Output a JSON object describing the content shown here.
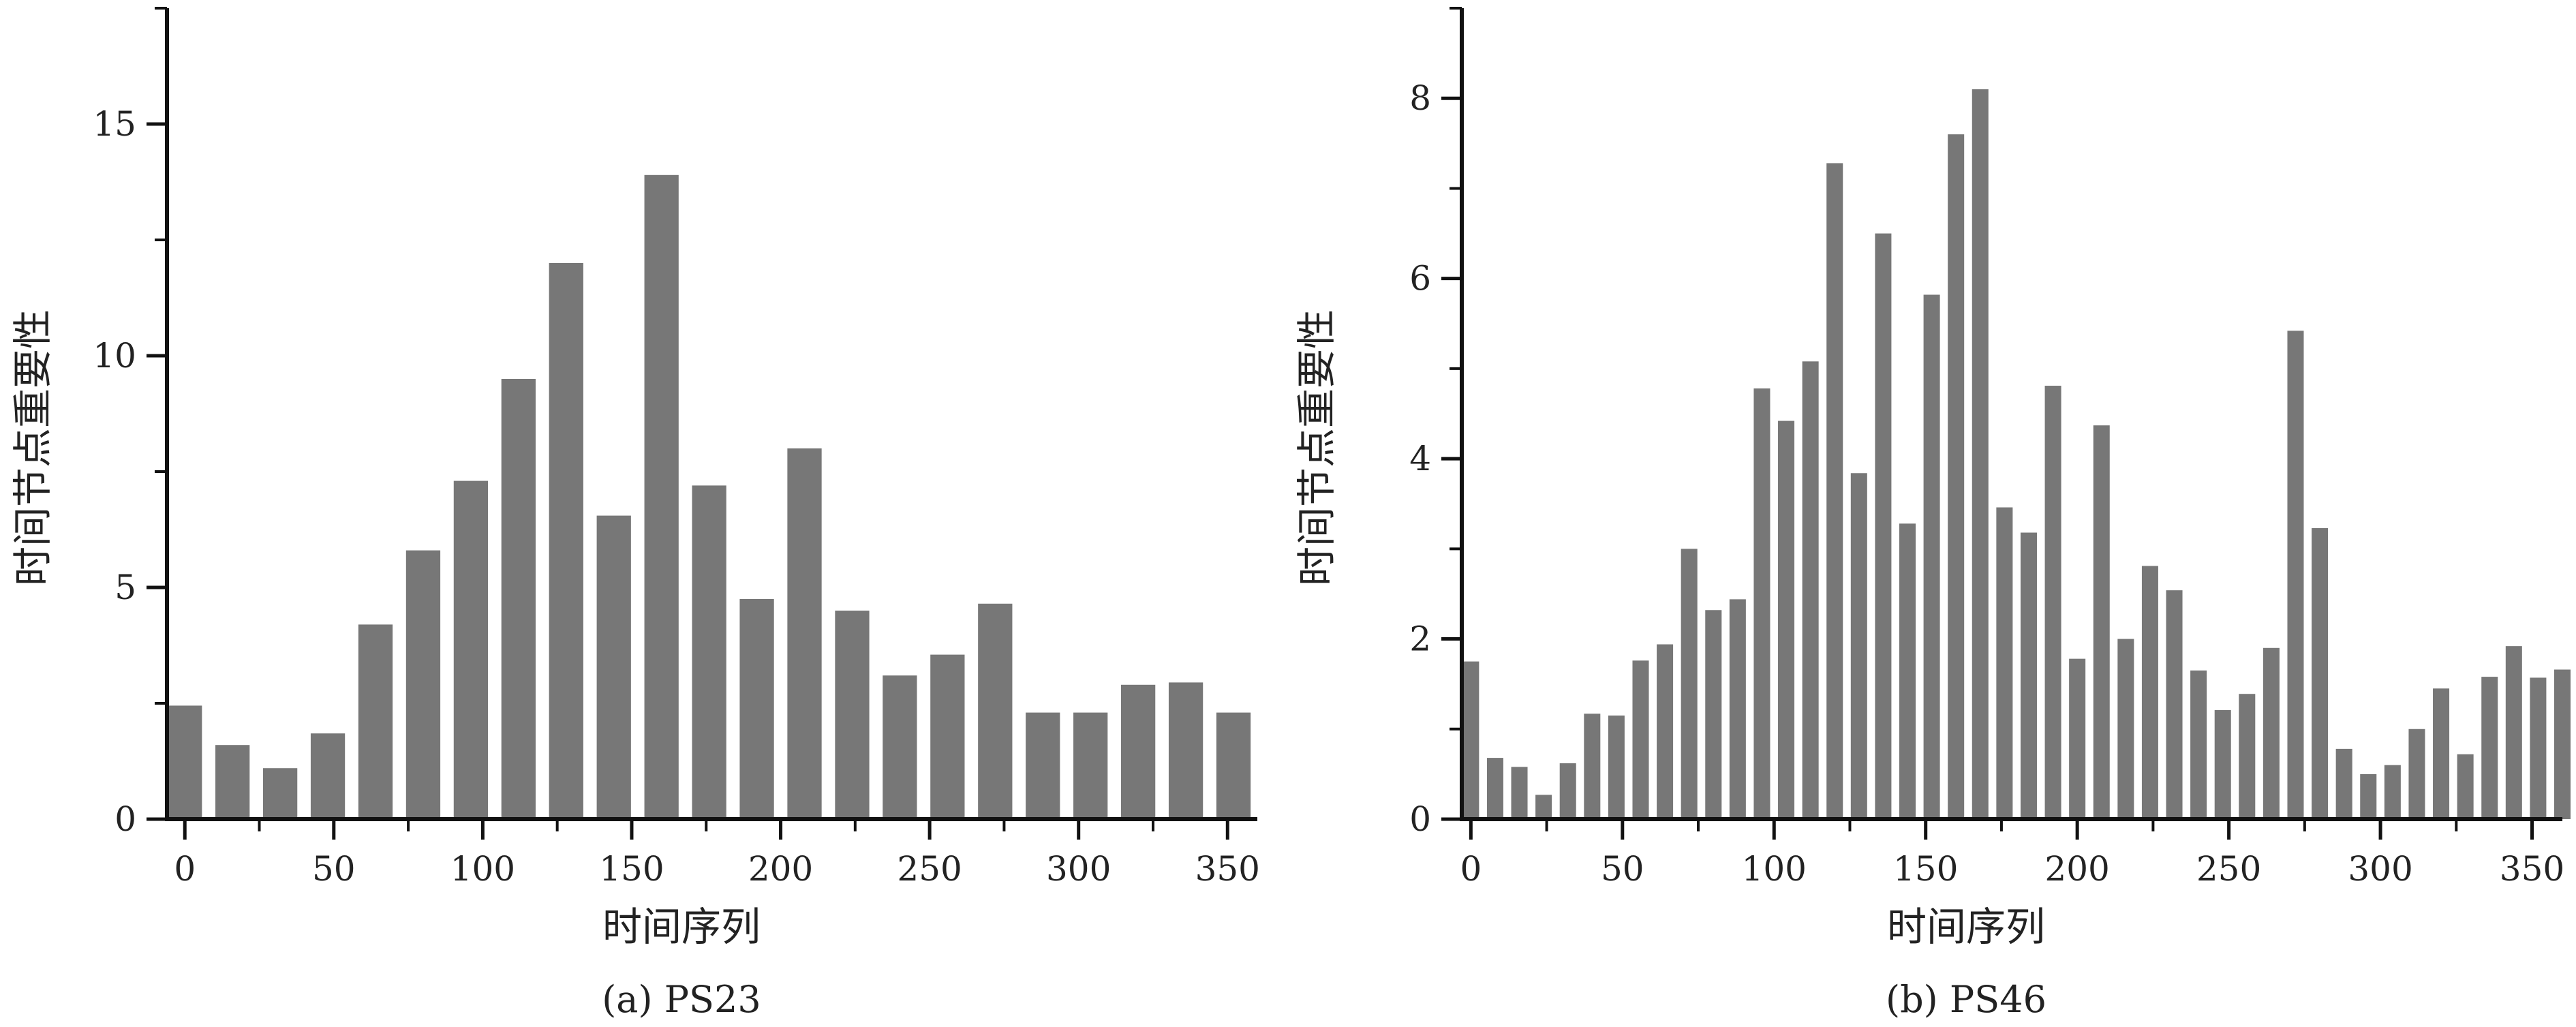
{
  "figure": {
    "background": "#ffffff",
    "bar_color": "#777777",
    "axis_color": "#111111"
  },
  "chart_data": [
    {
      "type": "bar",
      "caption": "(a) PS23",
      "xlabel": "时间序列",
      "ylabel": "时间节点重要性",
      "xlim": [
        -6,
        360
      ],
      "ylim": [
        0,
        17.5
      ],
      "xticks": [
        0,
        50,
        100,
        150,
        200,
        250,
        300,
        350
      ],
      "xtick_labels": [
        "0",
        "50",
        "100",
        "150",
        "200",
        "250",
        "300",
        "350"
      ],
      "yticks": [
        0,
        5,
        10,
        15
      ],
      "ytick_labels": [
        "0",
        "5",
        "10",
        "15"
      ],
      "bar_width": 11.5,
      "grid": false,
      "x": [
        0,
        16,
        32,
        48,
        64,
        80,
        96,
        112,
        128,
        144,
        160,
        176,
        192,
        208,
        224,
        240,
        256,
        272,
        288,
        304,
        320,
        336,
        352
      ],
      "values": [
        2.45,
        1.6,
        1.1,
        1.85,
        4.2,
        5.8,
        7.3,
        9.5,
        12.0,
        6.55,
        13.9,
        7.2,
        4.75,
        8.0,
        4.5,
        3.1,
        3.55,
        4.65,
        2.3,
        2.3,
        2.9,
        2.95,
        2.3
      ]
    },
    {
      "type": "bar",
      "caption": "(b) PS46",
      "xlabel": "时间序列",
      "ylabel": "时间节点重要性",
      "xlim": [
        -3,
        360
      ],
      "ylim": [
        0,
        9
      ],
      "xticks": [
        0,
        50,
        100,
        150,
        200,
        250,
        300,
        350
      ],
      "xtick_labels": [
        "0",
        "50",
        "100",
        "150",
        "200",
        "250",
        "300",
        "350"
      ],
      "yticks": [
        0,
        2,
        4,
        6,
        8
      ],
      "ytick_labels": [
        "0",
        "2",
        "4",
        "6",
        "8"
      ],
      "bar_width": 5.4,
      "grid": false,
      "x": [
        0,
        8,
        16,
        24,
        32,
        40,
        48,
        56,
        64,
        72,
        80,
        88,
        96,
        104,
        112,
        120,
        128,
        136,
        144,
        152,
        160,
        168,
        176,
        184,
        192,
        200,
        208,
        216,
        224,
        232,
        240,
        248,
        256,
        264,
        272,
        280,
        288,
        296,
        304,
        312,
        320,
        328,
        336,
        344,
        352,
        360
      ],
      "values": [
        1.75,
        0.68,
        0.58,
        0.27,
        0.62,
        1.17,
        1.15,
        1.76,
        1.94,
        3.0,
        2.32,
        2.44,
        4.78,
        4.42,
        5.08,
        7.28,
        3.84,
        6.5,
        3.28,
        5.82,
        7.6,
        8.1,
        3.46,
        3.18,
        4.81,
        1.78,
        4.37,
        2.0,
        2.81,
        2.54,
        1.65,
        1.21,
        1.39,
        1.9,
        5.42,
        3.23,
        0.78,
        0.5,
        0.6,
        1.0,
        1.45,
        0.72,
        1.58,
        1.92,
        1.57,
        1.66
      ]
    }
  ]
}
